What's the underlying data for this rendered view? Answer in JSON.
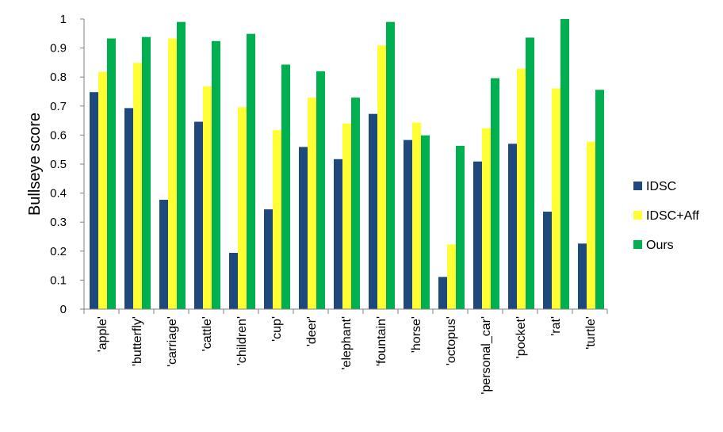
{
  "chart_data": {
    "type": "bar",
    "ylabel": "Bullseye score",
    "xlabel": "",
    "ylim": [
      0,
      1
    ],
    "yticks": [
      "0",
      "0.1",
      "0.2",
      "0.3",
      "0.4",
      "0.5",
      "0.6",
      "0.7",
      "0.8",
      "0.9",
      "1"
    ],
    "grid": false,
    "legend_position": "right",
    "categories": [
      "'apple'",
      "'butterfly'",
      "'carriage'",
      "'cattle'",
      "'children'",
      "'cup'",
      "'deer'",
      "'elephant'",
      "'fountain'",
      "'horse'",
      "'octopus'",
      "'personal_car'",
      "'pocket'",
      "'rat'",
      "'turtle'"
    ],
    "series": [
      {
        "name": "IDSC",
        "color": "#1f497d",
        "values": [
          0.748,
          0.693,
          0.377,
          0.646,
          0.194,
          0.344,
          0.559,
          0.517,
          0.673,
          0.583,
          0.111,
          0.509,
          0.57,
          0.336,
          0.226
        ]
      },
      {
        "name": "IDSC+Aff",
        "color": "#ffff33",
        "values": [
          0.818,
          0.849,
          0.933,
          0.768,
          0.696,
          0.617,
          0.729,
          0.64,
          0.909,
          0.643,
          0.223,
          0.624,
          0.829,
          0.761,
          0.577
        ]
      },
      {
        "name": "Ours",
        "color": "#00b050",
        "values": [
          0.933,
          0.938,
          0.99,
          0.924,
          0.949,
          0.843,
          0.82,
          0.729,
          0.99,
          0.599,
          0.563,
          0.796,
          0.936,
          1.0,
          0.756
        ]
      }
    ]
  }
}
